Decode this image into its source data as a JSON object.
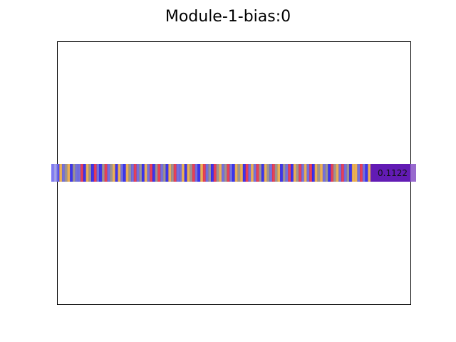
{
  "chart_data": {
    "type": "heatmap",
    "title": "Module-1-bias:0",
    "xlabel": "",
    "ylabel": "",
    "axes_ticks": false,
    "grid": false,
    "description_of_marks": "single horizontal strip of thin vertical color bands (bias values) with an overlaid end label",
    "strip_label": "0.1122",
    "colors": {
      "neg_strong": "#1a12e8",
      "neg_mid": "#5b57d6",
      "neutral": "#8b8080",
      "pos_mid": "#e6a23a",
      "pos_strong": "#e2203a",
      "end_block": "#5a0fb0"
    },
    "values": [
      -0.8,
      -0.5,
      -0.9,
      0.3,
      -0.7,
      -0.2,
      0.6,
      -0.9,
      0.1,
      -0.6,
      -0.4,
      0.8,
      -0.9,
      0.4,
      -0.3,
      -0.8,
      0.7,
      -0.5,
      -0.9,
      0.2,
      0.9,
      -0.7,
      -0.1,
      0.5,
      -0.8,
      0.3,
      -0.6,
      -0.9,
      0.6,
      -0.2,
      -0.7,
      0.8,
      -0.4,
      0.1,
      -0.9,
      0.4,
      -0.5,
      0.7,
      -0.8,
      -0.3,
      0.9,
      -0.6,
      0.2,
      -0.9,
      0.5,
      -0.1,
      0.8,
      -0.7,
      -0.4,
      0.3,
      -0.9,
      0.6,
      -0.2,
      0.9,
      -0.5,
      -0.8,
      0.4,
      0.7,
      -0.6,
      0.1,
      -0.9,
      0.8,
      -0.3,
      0.5,
      -0.7,
      0.2,
      0.9,
      -0.4,
      -0.8,
      0.6,
      -0.1,
      0.3,
      -0.9,
      0.7,
      -0.5,
      0.4,
      -0.6,
      0.8,
      -0.2,
      -0.9,
      0.5,
      0.1,
      -0.7,
      0.9,
      -0.3,
      0.6,
      -0.8,
      0.2,
      -0.5,
      0.7,
      -0.9,
      0.4,
      -0.1,
      0.8,
      -0.6,
      0.3,
      -0.4,
      0.9,
      -0.8,
      0.5,
      -0.2,
      0.6,
      -0.7,
      0.1,
      -0.9,
      0.7,
      -0.3,
      0.4,
      -0.6,
      0.8,
      -0.5,
      0.2,
      -0.9,
      0.6,
      0.3,
      -0.7,
      0.9,
      -0.4,
      -0.8,
      0.5
    ]
  }
}
